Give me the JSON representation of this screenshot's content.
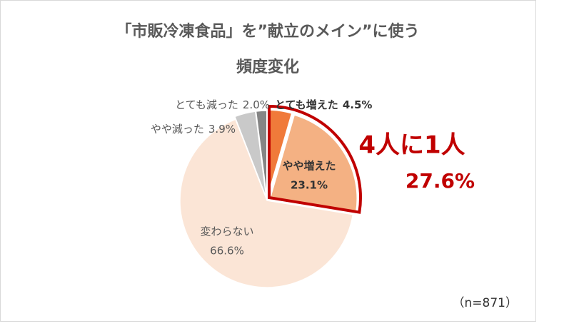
{
  "chart_data": {
    "type": "pie",
    "title_lines": [
      "「市販冷凍食品」を”献立のメイン”に使う",
      "頻度変化"
    ],
    "categories": [
      "とても増えた",
      "やや増えた",
      "変わらない",
      "やや減った",
      "とても減った"
    ],
    "values": [
      4.5,
      23.1,
      66.6,
      3.9,
      2.0
    ],
    "value_labels": [
      "4.5%",
      "23.1%",
      "66.6%",
      "3.9%",
      "2.0%"
    ],
    "colors": [
      "#f07a3a",
      "#f4b183",
      "#fbe5d6",
      "#c9c9c9",
      "#858585"
    ],
    "highlight": {
      "text": "4人に1人",
      "value": 27.6,
      "label": "27.6%",
      "color": "#c00000"
    },
    "note": "（n=871）"
  }
}
